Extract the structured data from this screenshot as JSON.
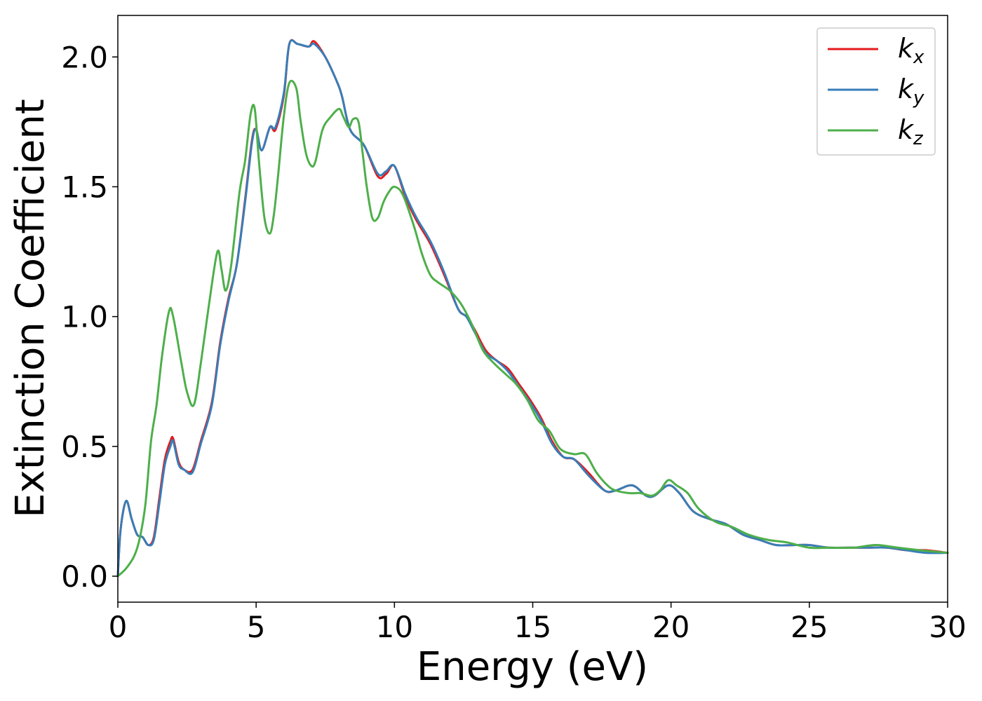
{
  "chart_data": {
    "type": "line",
    "title": "",
    "xlabel": "Energy (eV)",
    "ylabel": "Extinction Coefficient",
    "xlim": [
      0,
      30
    ],
    "ylim": [
      -0.1,
      2.16
    ],
    "xticks": [
      0,
      5,
      10,
      15,
      20,
      25,
      30
    ],
    "xtick_labels": [
      "0",
      "5",
      "10",
      "15",
      "20",
      "25",
      "30"
    ],
    "yticks": [
      0.0,
      0.5,
      1.0,
      1.5,
      2.0
    ],
    "ytick_labels": [
      "0.0",
      "0.5",
      "1.0",
      "1.5",
      "2.0"
    ],
    "grid": false,
    "legend_position": "top-right",
    "series": [
      {
        "name": "k",
        "subscript": "x",
        "color": "#e41a1c",
        "x": [
          0,
          0.1,
          0.3,
          0.5,
          0.7,
          0.9,
          1.1,
          1.3,
          1.5,
          1.7,
          1.9,
          2.0,
          2.2,
          2.4,
          2.7,
          3.0,
          3.4,
          3.7,
          4.0,
          4.3,
          4.6,
          4.85,
          5.0,
          5.2,
          5.5,
          5.7,
          6.0,
          6.2,
          6.5,
          6.9,
          7.1,
          7.5,
          7.9,
          8.1,
          8.4,
          8.9,
          9.4,
          9.7,
          10.0,
          10.4,
          10.8,
          11.3,
          11.8,
          12.3,
          12.6,
          12.9,
          13.3,
          13.7,
          14.1,
          14.5,
          14.9,
          15.3,
          15.7,
          16.1,
          16.5,
          17.0,
          17.6,
          18.0,
          18.6,
          19.1,
          19.4,
          19.9,
          20.3,
          20.8,
          21.4,
          22.0,
          22.6,
          23.2,
          23.8,
          24.5,
          25.0,
          25.7,
          26.4,
          27.1,
          27.8,
          28.5,
          29.2,
          30.0
        ],
        "y": [
          0.0,
          0.18,
          0.29,
          0.22,
          0.16,
          0.15,
          0.12,
          0.15,
          0.3,
          0.45,
          0.52,
          0.53,
          0.44,
          0.41,
          0.41,
          0.52,
          0.67,
          0.9,
          1.07,
          1.2,
          1.45,
          1.68,
          1.72,
          1.64,
          1.73,
          1.72,
          1.85,
          2.05,
          2.05,
          2.04,
          2.06,
          2.0,
          1.91,
          1.85,
          1.72,
          1.66,
          1.54,
          1.55,
          1.58,
          1.46,
          1.37,
          1.28,
          1.16,
          1.03,
          1.0,
          0.95,
          0.87,
          0.83,
          0.8,
          0.74,
          0.68,
          0.61,
          0.52,
          0.46,
          0.45,
          0.4,
          0.33,
          0.33,
          0.35,
          0.31,
          0.31,
          0.35,
          0.32,
          0.25,
          0.22,
          0.2,
          0.16,
          0.14,
          0.12,
          0.12,
          0.12,
          0.11,
          0.11,
          0.11,
          0.11,
          0.1,
          0.1,
          0.09
        ]
      },
      {
        "name": "k",
        "subscript": "y",
        "color": "#377eb8",
        "x": [
          0,
          0.1,
          0.3,
          0.5,
          0.7,
          0.9,
          1.1,
          1.3,
          1.5,
          1.7,
          1.9,
          2.0,
          2.2,
          2.4,
          2.7,
          3.0,
          3.4,
          3.7,
          4.0,
          4.3,
          4.6,
          4.85,
          5.0,
          5.2,
          5.5,
          5.7,
          6.0,
          6.2,
          6.5,
          6.9,
          7.1,
          7.5,
          7.9,
          8.1,
          8.4,
          8.9,
          9.4,
          9.7,
          10.0,
          10.4,
          10.8,
          11.3,
          11.8,
          12.3,
          12.6,
          12.9,
          13.3,
          13.7,
          14.1,
          14.5,
          14.9,
          15.3,
          15.7,
          16.1,
          16.5,
          17.0,
          17.6,
          18.0,
          18.6,
          19.1,
          19.4,
          19.9,
          20.3,
          20.8,
          21.4,
          22.0,
          22.6,
          23.2,
          23.8,
          24.5,
          25.0,
          25.7,
          26.4,
          27.1,
          27.8,
          28.5,
          29.2,
          30.0
        ],
        "y": [
          0.0,
          0.18,
          0.29,
          0.22,
          0.16,
          0.15,
          0.12,
          0.14,
          0.28,
          0.43,
          0.5,
          0.52,
          0.43,
          0.41,
          0.4,
          0.51,
          0.66,
          0.89,
          1.06,
          1.2,
          1.44,
          1.67,
          1.72,
          1.64,
          1.73,
          1.73,
          1.86,
          2.05,
          2.05,
          2.04,
          2.05,
          2.0,
          1.91,
          1.85,
          1.72,
          1.66,
          1.55,
          1.56,
          1.58,
          1.47,
          1.38,
          1.29,
          1.17,
          1.03,
          1.0,
          0.94,
          0.86,
          0.83,
          0.79,
          0.73,
          0.67,
          0.6,
          0.51,
          0.46,
          0.45,
          0.39,
          0.33,
          0.33,
          0.35,
          0.31,
          0.31,
          0.35,
          0.32,
          0.25,
          0.22,
          0.2,
          0.16,
          0.14,
          0.12,
          0.12,
          0.12,
          0.11,
          0.11,
          0.11,
          0.11,
          0.1,
          0.09,
          0.09
        ]
      },
      {
        "name": "k",
        "subscript": "z",
        "color": "#4daf4a",
        "x": [
          0,
          0.3,
          0.6,
          0.8,
          1.0,
          1.2,
          1.4,
          1.6,
          1.85,
          2.0,
          2.3,
          2.5,
          2.75,
          3.0,
          3.3,
          3.6,
          3.75,
          3.9,
          4.1,
          4.4,
          4.6,
          4.8,
          4.95,
          5.1,
          5.3,
          5.5,
          5.65,
          5.8,
          6.0,
          6.2,
          6.45,
          6.6,
          6.8,
          7.0,
          7.15,
          7.4,
          7.7,
          8.0,
          8.15,
          8.35,
          8.5,
          8.7,
          8.85,
          9.0,
          9.2,
          9.4,
          9.6,
          9.8,
          10.0,
          10.3,
          10.7,
          11.0,
          11.3,
          11.6,
          12.0,
          12.4,
          12.8,
          13.2,
          13.6,
          14.0,
          14.4,
          14.8,
          15.2,
          15.6,
          16.0,
          16.5,
          16.9,
          17.3,
          17.7,
          18.0,
          18.5,
          18.9,
          19.3,
          19.6,
          19.9,
          20.2,
          20.6,
          21.0,
          21.6,
          22.2,
          22.8,
          23.5,
          24.2,
          25.0,
          25.8,
          26.6,
          27.4,
          28.2,
          29.0,
          30.0
        ],
        "y": [
          0.0,
          0.03,
          0.08,
          0.15,
          0.28,
          0.52,
          0.66,
          0.85,
          1.02,
          1.0,
          0.82,
          0.71,
          0.66,
          0.82,
          1.05,
          1.25,
          1.18,
          1.1,
          1.2,
          1.48,
          1.6,
          1.78,
          1.8,
          1.6,
          1.38,
          1.32,
          1.4,
          1.55,
          1.77,
          1.9,
          1.88,
          1.76,
          1.63,
          1.58,
          1.6,
          1.72,
          1.77,
          1.8,
          1.77,
          1.73,
          1.76,
          1.75,
          1.63,
          1.5,
          1.38,
          1.38,
          1.44,
          1.48,
          1.5,
          1.47,
          1.35,
          1.24,
          1.16,
          1.13,
          1.1,
          1.05,
          0.97,
          0.87,
          0.82,
          0.78,
          0.74,
          0.68,
          0.6,
          0.56,
          0.49,
          0.47,
          0.47,
          0.4,
          0.35,
          0.33,
          0.32,
          0.32,
          0.31,
          0.33,
          0.37,
          0.35,
          0.32,
          0.26,
          0.21,
          0.19,
          0.16,
          0.14,
          0.13,
          0.11,
          0.11,
          0.11,
          0.12,
          0.11,
          0.1,
          0.09
        ]
      }
    ]
  }
}
